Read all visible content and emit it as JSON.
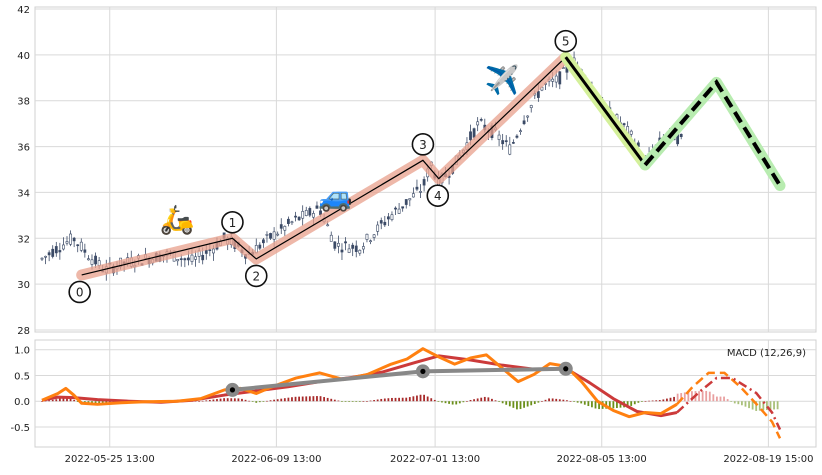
{
  "chart_data": [
    {
      "type": "candlestick",
      "ylim": [
        28,
        42
      ],
      "y_ticks": [
        "28",
        "30",
        "32",
        "34",
        "36",
        "38",
        "40",
        "42"
      ],
      "grid": true,
      "x_range_days": [
        -4,
        89
      ],
      "colors": {
        "bull": "#ffffff",
        "bear": "#3b4a66",
        "wave": "#e8a08c",
        "correction": "#d4f09a",
        "projection": "#b8ecb0",
        "projection_dash": "#000000"
      },
      "price_path": [
        {
          "d": -4,
          "p": 31.1
        },
        {
          "d": -2,
          "p": 31.6
        },
        {
          "d": 0,
          "p": 32.0
        },
        {
          "d": 2,
          "p": 31.2
        },
        {
          "d": 4,
          "p": 30.6
        },
        {
          "d": 6,
          "p": 30.9
        },
        {
          "d": 9,
          "p": 31.1
        },
        {
          "d": 12,
          "p": 31.3
        },
        {
          "d": 15,
          "p": 31.0
        },
        {
          "d": 18,
          "p": 31.7
        },
        {
          "d": 19,
          "p": 32.0
        },
        {
          "d": 20,
          "p": 31.8
        },
        {
          "d": 22,
          "p": 31.3
        },
        {
          "d": 25,
          "p": 32.1
        },
        {
          "d": 28,
          "p": 32.8
        },
        {
          "d": 31,
          "p": 33.3
        },
        {
          "d": 33,
          "p": 31.7
        },
        {
          "d": 36,
          "p": 31.6
        },
        {
          "d": 38,
          "p": 32.3
        },
        {
          "d": 40,
          "p": 33.0
        },
        {
          "d": 42,
          "p": 33.6
        },
        {
          "d": 44,
          "p": 34.2
        },
        {
          "d": 45,
          "p": 35.3
        },
        {
          "d": 46,
          "p": 34.4
        },
        {
          "d": 48,
          "p": 35.2
        },
        {
          "d": 51,
          "p": 37.0
        },
        {
          "d": 53,
          "p": 36.6
        },
        {
          "d": 55,
          "p": 35.9
        },
        {
          "d": 57,
          "p": 37.4
        },
        {
          "d": 59,
          "p": 38.6
        },
        {
          "d": 61,
          "p": 38.9
        },
        {
          "d": 63,
          "p": 39.7
        },
        {
          "d": 65,
          "p": 38.7
        },
        {
          "d": 67,
          "p": 37.6
        },
        {
          "d": 69,
          "p": 37.0
        },
        {
          "d": 71,
          "p": 36.1
        },
        {
          "d": 72,
          "p": 35.2
        },
        {
          "d": 73,
          "p": 35.8
        },
        {
          "d": 75,
          "p": 36.6
        },
        {
          "d": 77,
          "p": 36.2
        }
      ],
      "wave_points": [
        {
          "label": "0",
          "d": 1,
          "p": 30.4,
          "pos": "below"
        },
        {
          "label": "1",
          "d": 20,
          "p": 32.0,
          "pos": "above"
        },
        {
          "label": "2",
          "d": 23,
          "p": 31.1,
          "pos": "below"
        },
        {
          "label": "3",
          "d": 44,
          "p": 35.4,
          "pos": "above"
        },
        {
          "label": "4",
          "d": 46,
          "p": 34.6,
          "pos": "below"
        },
        {
          "label": "5",
          "d": 62,
          "p": 39.9,
          "pos": "above"
        }
      ],
      "correction_end": {
        "d": 72,
        "p": 35.2
      },
      "projection": [
        {
          "d": 72,
          "p": 35.2
        },
        {
          "d": 81,
          "p": 38.8
        },
        {
          "d": 89,
          "p": 34.3
        }
      ],
      "icons": [
        {
          "name": "scooter-icon",
          "glyph": "🛵",
          "d": 13,
          "p": 32.4
        },
        {
          "name": "car-icon",
          "glyph": "🚙",
          "d": 33,
          "p": 33.4
        },
        {
          "name": "airplane-icon",
          "glyph": "✈️",
          "d": 54,
          "p": 38.5
        }
      ]
    },
    {
      "type": "macd",
      "title": "MACD (12,26,9)",
      "ylim": [
        -0.85,
        1.15
      ],
      "y_ticks": [
        "1.0",
        "0.5",
        "0.0",
        "-0.5"
      ],
      "x_ticks": [
        {
          "d": 0,
          "label": "2022-05-25 13:00"
        },
        {
          "d": 21,
          "label": "2022-06-09 13:00"
        },
        {
          "d": 41,
          "label": "2022-07-01 13:00"
        },
        {
          "d": 62,
          "label": "2022-08-05 13:00"
        },
        {
          "d": 83,
          "label": "2022-08-19 15:00"
        }
      ],
      "macd_line": [
        {
          "d": -4,
          "v": 0.02
        },
        {
          "d": -2,
          "v": 0.15
        },
        {
          "d": -1,
          "v": 0.25
        },
        {
          "d": 0,
          "v": 0.12
        },
        {
          "d": 1,
          "v": -0.04
        },
        {
          "d": 3,
          "v": -0.06
        },
        {
          "d": 6,
          "v": -0.03
        },
        {
          "d": 9,
          "v": -0.01
        },
        {
          "d": 13,
          "v": 0.0
        },
        {
          "d": 16,
          "v": 0.05
        },
        {
          "d": 19,
          "v": 0.22
        },
        {
          "d": 21,
          "v": 0.25
        },
        {
          "d": 23,
          "v": 0.15
        },
        {
          "d": 25,
          "v": 0.28
        },
        {
          "d": 28,
          "v": 0.45
        },
        {
          "d": 31,
          "v": 0.55
        },
        {
          "d": 34,
          "v": 0.42
        },
        {
          "d": 37,
          "v": 0.52
        },
        {
          "d": 40,
          "v": 0.72
        },
        {
          "d": 42,
          "v": 0.82
        },
        {
          "d": 44,
          "v": 1.02
        },
        {
          "d": 46,
          "v": 0.86
        },
        {
          "d": 48,
          "v": 0.72
        },
        {
          "d": 50,
          "v": 0.84
        },
        {
          "d": 52,
          "v": 0.9
        },
        {
          "d": 54,
          "v": 0.64
        },
        {
          "d": 56,
          "v": 0.38
        },
        {
          "d": 58,
          "v": 0.52
        },
        {
          "d": 60,
          "v": 0.73
        },
        {
          "d": 62,
          "v": 0.68
        },
        {
          "d": 64,
          "v": 0.38
        },
        {
          "d": 66,
          "v": 0.0
        },
        {
          "d": 68,
          "v": -0.18
        },
        {
          "d": 70,
          "v": -0.3
        },
        {
          "d": 72,
          "v": -0.22
        },
        {
          "d": 74,
          "v": -0.24
        },
        {
          "d": 76,
          "v": -0.06
        }
      ],
      "signal_line": [
        {
          "d": -4,
          "v": 0.02
        },
        {
          "d": -2,
          "v": 0.08
        },
        {
          "d": 0,
          "v": 0.07
        },
        {
          "d": 3,
          "v": 0.03
        },
        {
          "d": 7,
          "v": 0.0
        },
        {
          "d": 11,
          "v": -0.02
        },
        {
          "d": 15,
          "v": 0.02
        },
        {
          "d": 19,
          "v": 0.12
        },
        {
          "d": 23,
          "v": 0.2
        },
        {
          "d": 27,
          "v": 0.28
        },
        {
          "d": 31,
          "v": 0.38
        },
        {
          "d": 35,
          "v": 0.46
        },
        {
          "d": 39,
          "v": 0.57
        },
        {
          "d": 43,
          "v": 0.75
        },
        {
          "d": 46,
          "v": 0.88
        },
        {
          "d": 50,
          "v": 0.8
        },
        {
          "d": 54,
          "v": 0.7
        },
        {
          "d": 58,
          "v": 0.62
        },
        {
          "d": 62,
          "v": 0.64
        },
        {
          "d": 65,
          "v": 0.36
        },
        {
          "d": 68,
          "v": 0.05
        },
        {
          "d": 71,
          "v": -0.2
        },
        {
          "d": 74,
          "v": -0.28
        },
        {
          "d": 76,
          "v": -0.22
        }
      ],
      "macd_projection": [
        {
          "d": 76,
          "v": -0.06
        },
        {
          "d": 78,
          "v": 0.28
        },
        {
          "d": 80,
          "v": 0.55
        },
        {
          "d": 82,
          "v": 0.55
        },
        {
          "d": 84,
          "v": 0.28
        },
        {
          "d": 86,
          "v": -0.05
        },
        {
          "d": 88,
          "v": -0.4
        },
        {
          "d": 89,
          "v": -0.72
        }
      ],
      "signal_projection": [
        {
          "d": 76,
          "v": -0.22
        },
        {
          "d": 79,
          "v": 0.2
        },
        {
          "d": 81,
          "v": 0.45
        },
        {
          "d": 83,
          "v": 0.45
        },
        {
          "d": 86,
          "v": 0.16
        },
        {
          "d": 88,
          "v": -0.22
        },
        {
          "d": 89,
          "v": -0.55
        }
      ],
      "divergence_points": [
        {
          "d": 20,
          "v": 0.22
        },
        {
          "d": 44,
          "v": 0.58
        },
        {
          "d": 62,
          "v": 0.63
        }
      ],
      "colors": {
        "macd": "#ff8010",
        "signal": "#cc3a3a",
        "hist_pos": "#a82a2a",
        "hist_neg": "#6a8f1a",
        "hist_proj_pos": "#e9a0a0",
        "hist_proj_neg": "#a9c07a",
        "divergence": "#888888"
      }
    }
  ]
}
